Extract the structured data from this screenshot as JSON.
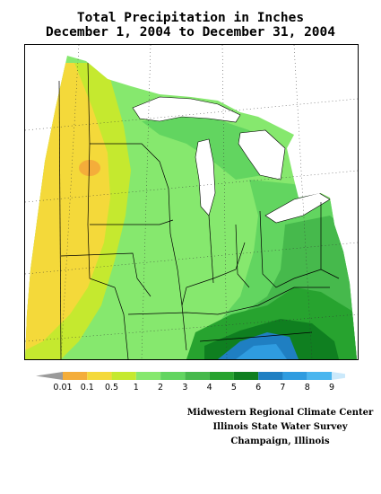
{
  "title": {
    "line1": "Total Precipitation in Inches",
    "line2": "December 1, 2004 to December 31, 2004"
  },
  "legend": {
    "labels": [
      "0.01",
      "0.1",
      "0.5",
      "1",
      "2",
      "3",
      "4",
      "5",
      "6",
      "7",
      "8",
      "9"
    ],
    "colors": [
      "#f4ad3a",
      "#f4d93a",
      "#c5e92f",
      "#86e86e",
      "#62d560",
      "#46b94c",
      "#27a32f",
      "#0f7f20",
      "#1f7fc2",
      "#2f9ce0",
      "#4ab6ef",
      "#a9dbf6"
    ],
    "low_end_color": "#9a9a9a",
    "high_end_color": "#cbe9fb"
  },
  "credits": {
    "line1": "Midwestern Regional Climate Center",
    "line2": "Illinois State Water Survey",
    "line3": "Champaign, Illinois"
  }
}
